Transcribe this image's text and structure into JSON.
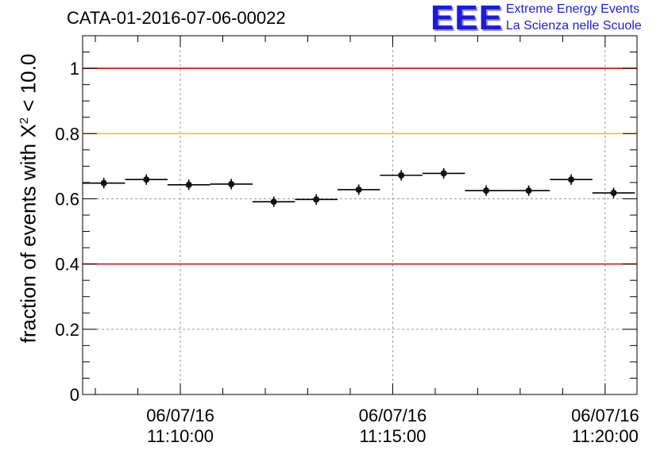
{
  "chart_data": {
    "type": "scatter",
    "title": "CATA-01-2016-07-06-00022",
    "ylabel": "fraction of events with",
    "ylabel_chi": "X",
    "ylabel_exp": "2",
    "ylabel_cut": "< 10.0",
    "xlabel": "",
    "ylim": [
      0,
      1.1
    ],
    "yticks": [
      0,
      0.2,
      0.4,
      0.6,
      0.8,
      1
    ],
    "ytick_labels": [
      "0",
      "0.2",
      "0.4",
      "0.6",
      "0.8",
      "1"
    ],
    "xticks": [
      {
        "minute": 10,
        "date": "06/07/16",
        "time": "11:10:00"
      },
      {
        "minute": 15,
        "date": "06/07/16",
        "time": "11:15:00"
      },
      {
        "minute": 20,
        "date": "06/07/16",
        "time": "11:20:00"
      }
    ],
    "x_range_minutes_after_11_00": [
      7.7,
      20.75
    ],
    "reference_lines": [
      {
        "y": 1.0,
        "color": "#e00000"
      },
      {
        "y": 0.8,
        "color": "#ffc000"
      },
      {
        "y": 0.4,
        "color": "#e00000"
      }
    ],
    "grid": true,
    "series": [
      {
        "x_minutes_after_11_00": [
          8.2,
          9.2,
          10.2,
          11.2,
          12.2,
          13.2,
          14.2,
          15.2,
          16.2,
          17.2,
          18.2,
          19.2,
          20.2
        ],
        "x_halfwidth_minutes": 0.5,
        "values": [
          0.648,
          0.659,
          0.643,
          0.645,
          0.591,
          0.598,
          0.628,
          0.672,
          0.678,
          0.625,
          0.625,
          0.659,
          0.618
        ],
        "errors": [
          0.016,
          0.016,
          0.016,
          0.016,
          0.016,
          0.016,
          0.016,
          0.016,
          0.016,
          0.016,
          0.016,
          0.016,
          0.016
        ]
      }
    ]
  },
  "logo": {
    "text": "EEE",
    "line1": "Extreme Energy Events",
    "line2": "La Scienza nelle Scuole",
    "color": "#1b1bdc"
  }
}
